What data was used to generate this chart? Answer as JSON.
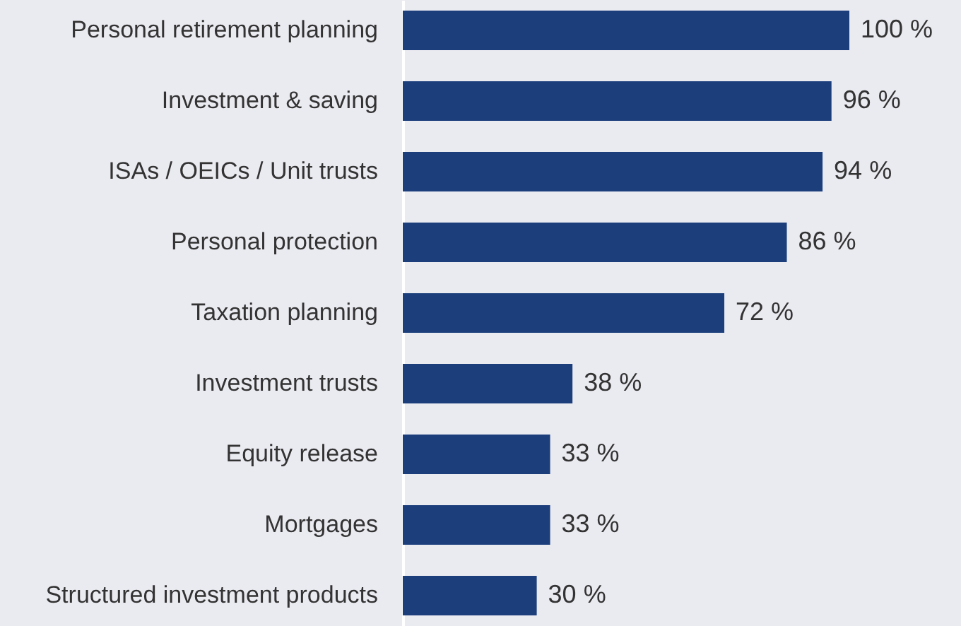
{
  "chart_data": {
    "type": "bar",
    "orientation": "horizontal",
    "categories": [
      "Personal retirement planning",
      "Investment & saving",
      "ISAs / OEICs / Unit trusts",
      "Personal protection",
      "Taxation planning",
      "Investment trusts",
      "Equity release",
      "Mortgages",
      "Structured investment products"
    ],
    "values": [
      100,
      96,
      94,
      86,
      72,
      38,
      33,
      33,
      30
    ],
    "value_labels": [
      "100 %",
      "96 %",
      "94 %",
      "86 %",
      "72 %",
      "38 %",
      "33 %",
      "33 %",
      "30 %"
    ],
    "color": "#1c3f7c"
  }
}
